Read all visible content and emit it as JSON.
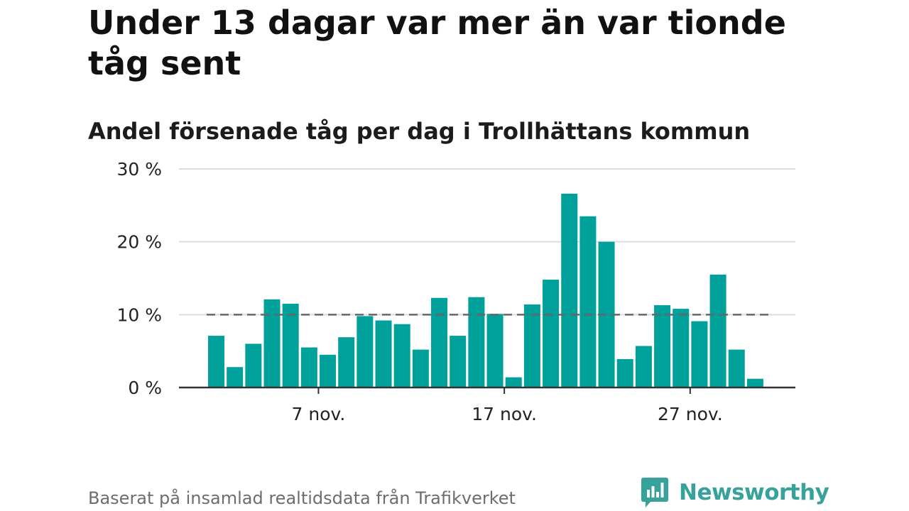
{
  "chart_data": {
    "type": "bar",
    "title": "Under 13 dagar var mer än var tionde tåg sent",
    "subtitle": "Andel försenade tåg per dag i Trollhättans kommun",
    "x": [
      "1 nov.",
      "2 nov.",
      "3 nov.",
      "4 nov.",
      "5 nov.",
      "6 nov.",
      "7 nov.",
      "8 nov.",
      "9 nov.",
      "10 nov.",
      "11 nov.",
      "12 nov.",
      "13 nov.",
      "14 nov.",
      "15 nov.",
      "16 nov.",
      "17 nov.",
      "18 nov.",
      "19 nov.",
      "20 nov.",
      "21 nov.",
      "22 nov.",
      "23 nov.",
      "24 nov.",
      "25 nov.",
      "26 nov.",
      "27 nov.",
      "28 nov.",
      "29 nov.",
      "30 nov."
    ],
    "values": [
      7.1,
      2.8,
      6.0,
      12.1,
      11.5,
      5.5,
      4.5,
      6.9,
      9.8,
      9.2,
      8.7,
      5.2,
      12.3,
      7.1,
      12.4,
      10.1,
      1.4,
      11.4,
      14.8,
      26.6,
      23.5,
      20.0,
      3.9,
      5.7,
      11.3,
      10.8,
      9.1,
      15.5,
      5.2,
      1.2
    ],
    "x_tick_labels": [
      "7 nov.",
      "17 nov.",
      "27 nov."
    ],
    "y_tick_labels": [
      "0 %",
      "10 %",
      "20 %",
      "30 %"
    ],
    "y_ticks": [
      0,
      10,
      20,
      30
    ],
    "ylim": [
      0,
      30
    ],
    "reference_line": 10,
    "grid": true,
    "xlabel": "",
    "ylabel": "",
    "bar_color": "#00a19a",
    "reference_line_color": "#666666",
    "gridline_color": "#dddddd"
  },
  "footer": {
    "source": "Baserat på insamlad realtidsdata från Trafikverket",
    "brand": "Newsworthy",
    "brand_icon": "newsworthy-logo-icon",
    "brand_color": "#36a29a"
  }
}
